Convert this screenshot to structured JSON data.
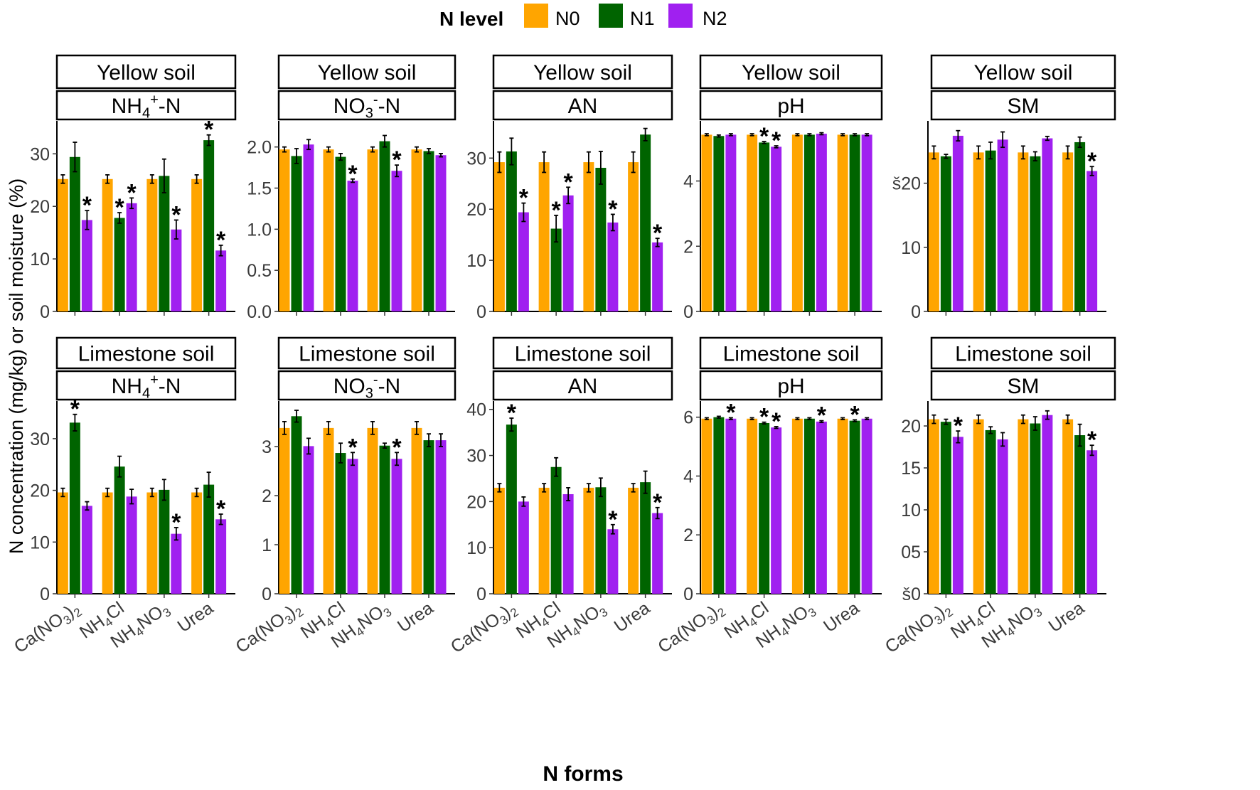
{
  "chart_data": {
    "type": "bar",
    "legend": {
      "title": "N level",
      "entries": [
        {
          "name": "N0",
          "color": "#FFA500"
        },
        {
          "name": "N1",
          "color": "#006400"
        },
        {
          "name": "N2",
          "color": "#A020F0"
        }
      ]
    },
    "xlabel": "N forms",
    "ylabel": "N concentration (mg/kg) or soil moisture (%)",
    "categories": [
      "Ca(NO3)2",
      "NH4Cl",
      "NH4NO3",
      "Urea"
    ],
    "category_labels": [
      {
        "parts": [
          {
            "t": "Ca(NO"
          },
          {
            "t": "3",
            "sub": true
          },
          {
            "t": ")"
          },
          {
            "t": "2",
            "sub": true
          }
        ]
      },
      {
        "parts": [
          {
            "t": "NH"
          },
          {
            "t": "4",
            "sub": true
          },
          {
            "t": "Cl"
          }
        ]
      },
      {
        "parts": [
          {
            "t": "NH"
          },
          {
            "t": "4",
            "sub": true
          },
          {
            "t": "NO"
          },
          {
            "t": "3",
            "sub": true
          }
        ]
      },
      {
        "parts": [
          {
            "t": "Urea"
          }
        ]
      }
    ],
    "significance_marker": "*",
    "panels": [
      {
        "soil": "Yellow soil",
        "variable": "NH4+-N",
        "variable_parts": [
          {
            "t": "NH"
          },
          {
            "t": "4",
            "sub": true
          },
          {
            "t": "+",
            "sup": true
          },
          {
            "t": "-N"
          }
        ],
        "ylim": [
          0,
          36
        ],
        "ticks": [
          0,
          10,
          20,
          30
        ],
        "tick_labels": [
          "0",
          "10",
          "20",
          "30"
        ],
        "series": [
          {
            "name": "N0",
            "values": [
              25.2,
              25.2,
              25.2,
              25.2
            ],
            "err": [
              0.8,
              0.8,
              0.8,
              0.8
            ],
            "sig": [
              false,
              false,
              false,
              false
            ]
          },
          {
            "name": "N1",
            "values": [
              29.4,
              17.8,
              25.8,
              32.6
            ],
            "err": [
              2.8,
              1.0,
              3.2,
              1.0
            ],
            "sig": [
              false,
              true,
              false,
              true
            ]
          },
          {
            "name": "N2",
            "values": [
              17.4,
              20.6,
              15.6,
              11.6
            ],
            "err": [
              1.8,
              1.0,
              1.8,
              1.0
            ],
            "sig": [
              true,
              true,
              true,
              true
            ]
          }
        ]
      },
      {
        "soil": "Yellow soil",
        "variable": "NO3--N",
        "variable_parts": [
          {
            "t": "NO"
          },
          {
            "t": "3",
            "sub": true
          },
          {
            "t": "-",
            "sup": true
          },
          {
            "t": "-N"
          }
        ],
        "ylim": [
          0,
          2.3
        ],
        "ticks": [
          0,
          0.5,
          1.0,
          1.5,
          2.0
        ],
        "tick_labels": [
          "0.0",
          "0.5",
          "1.0",
          "1.5",
          "2.0"
        ],
        "series": [
          {
            "name": "N0",
            "values": [
              1.97,
              1.97,
              1.97,
              1.97
            ],
            "err": [
              0.03,
              0.03,
              0.03,
              0.03
            ],
            "sig": [
              false,
              false,
              false,
              false
            ]
          },
          {
            "name": "N1",
            "values": [
              1.89,
              1.88,
              2.07,
              1.95
            ],
            "err": [
              0.09,
              0.04,
              0.07,
              0.03
            ],
            "sig": [
              false,
              false,
              false,
              false
            ]
          },
          {
            "name": "N2",
            "values": [
              2.03,
              1.59,
              1.71,
              1.9
            ],
            "err": [
              0.06,
              0.02,
              0.07,
              0.02
            ],
            "sig": [
              false,
              true,
              true,
              false
            ]
          }
        ]
      },
      {
        "soil": "Yellow soil",
        "variable": "AN",
        "variable_parts": [
          {
            "t": "AN"
          }
        ],
        "ylim": [
          0,
          37
        ],
        "ticks": [
          0,
          10,
          20,
          30
        ],
        "tick_labels": [
          "0",
          "10",
          "20",
          "30"
        ],
        "series": [
          {
            "name": "N0",
            "values": [
              29.2,
              29.2,
              29.2,
              29.2
            ],
            "err": [
              2.0,
              2.0,
              2.0,
              2.0
            ],
            "sig": [
              false,
              false,
              false,
              false
            ]
          },
          {
            "name": "N1",
            "values": [
              31.3,
              16.2,
              28.1,
              34.6
            ],
            "err": [
              2.6,
              2.6,
              3.2,
              1.2
            ],
            "sig": [
              false,
              true,
              false,
              false
            ]
          },
          {
            "name": "N2",
            "values": [
              19.4,
              22.7,
              17.4,
              13.5
            ],
            "err": [
              1.8,
              1.6,
              1.6,
              0.8
            ],
            "sig": [
              true,
              true,
              true,
              true
            ]
          }
        ]
      },
      {
        "soil": "Yellow soil",
        "variable": "pH",
        "variable_parts": [
          {
            "t": "pH"
          }
        ],
        "ylim": [
          0,
          5.8
        ],
        "ticks": [
          0,
          2,
          4
        ],
        "tick_labels": [
          "0",
          "2",
          "4"
        ],
        "series": [
          {
            "name": "N0",
            "values": [
              5.42,
              5.42,
              5.42,
              5.42
            ],
            "err": [
              0.03,
              0.03,
              0.03,
              0.03
            ],
            "sig": [
              false,
              false,
              false,
              false
            ]
          },
          {
            "name": "N1",
            "values": [
              5.38,
              5.18,
              5.42,
              5.42
            ],
            "err": [
              0.03,
              0.03,
              0.03,
              0.03
            ],
            "sig": [
              false,
              true,
              false,
              false
            ]
          },
          {
            "name": "N2",
            "values": [
              5.42,
              5.05,
              5.45,
              5.42
            ],
            "err": [
              0.03,
              0.03,
              0.03,
              0.03
            ],
            "sig": [
              false,
              true,
              false,
              false
            ]
          }
        ]
      },
      {
        "soil": "Yellow soil",
        "variable": "SM",
        "variable_parts": [
          {
            "t": "SM"
          }
        ],
        "ylim": [
          0,
          29.5
        ],
        "ticks": [
          0,
          10,
          20
        ],
        "tick_labels": [
          "0",
          "10",
          "š20"
        ],
        "series": [
          {
            "name": "N0",
            "values": [
              24.8,
              24.8,
              24.8,
              24.8
            ],
            "err": [
              1.0,
              1.0,
              1.0,
              1.0
            ],
            "sig": [
              false,
              false,
              false,
              false
            ]
          },
          {
            "name": "N1",
            "values": [
              24.2,
              25.1,
              24.2,
              26.4
            ],
            "err": [
              0.3,
              1.3,
              0.7,
              0.8
            ],
            "sig": [
              false,
              false,
              false,
              false
            ]
          },
          {
            "name": "N2",
            "values": [
              27.4,
              26.8,
              27.0,
              21.9
            ],
            "err": [
              0.8,
              1.2,
              0.3,
              0.7
            ],
            "sig": [
              false,
              false,
              false,
              true
            ]
          }
        ]
      },
      {
        "soil": "Limestone soil",
        "variable": "NH4+-N",
        "variable_parts": [
          {
            "t": "NH"
          },
          {
            "t": "4",
            "sub": true
          },
          {
            "t": "+",
            "sup": true
          },
          {
            "t": "-N"
          }
        ],
        "ylim": [
          0,
          37
        ],
        "ticks": [
          0,
          10,
          20,
          30
        ],
        "tick_labels": [
          "0",
          "10",
          "20",
          "30"
        ],
        "series": [
          {
            "name": "N0",
            "values": [
              19.6,
              19.6,
              19.6,
              19.6
            ],
            "err": [
              0.8,
              0.8,
              0.8,
              0.8
            ],
            "sig": [
              false,
              false,
              false,
              false
            ]
          },
          {
            "name": "N1",
            "values": [
              33.1,
              24.6,
              20.1,
              21.1
            ],
            "err": [
              1.6,
              2.0,
              2.0,
              2.4
            ],
            "sig": [
              true,
              false,
              false,
              false
            ]
          },
          {
            "name": "N2",
            "values": [
              17.0,
              18.8,
              11.6,
              14.4
            ],
            "err": [
              0.8,
              1.4,
              1.2,
              1.0
            ],
            "sig": [
              false,
              false,
              true,
              true
            ]
          }
        ]
      },
      {
        "soil": "Limestone soil",
        "variable": "NO3--N",
        "variable_parts": [
          {
            "t": "NO"
          },
          {
            "t": "3",
            "sub": true
          },
          {
            "t": "-",
            "sup": true
          },
          {
            "t": "-N"
          }
        ],
        "ylim": [
          0,
          3.9
        ],
        "ticks": [
          0,
          1,
          2,
          3
        ],
        "tick_labels": [
          "0",
          "1",
          "2",
          "3"
        ],
        "series": [
          {
            "name": "N0",
            "values": [
              3.38,
              3.38,
              3.38,
              3.38
            ],
            "err": [
              0.13,
              0.13,
              0.13,
              0.13
            ],
            "sig": [
              false,
              false,
              false,
              false
            ]
          },
          {
            "name": "N1",
            "values": [
              3.62,
              2.87,
              3.02,
              3.13
            ],
            "err": [
              0.12,
              0.2,
              0.05,
              0.13
            ],
            "sig": [
              false,
              false,
              false,
              false
            ]
          },
          {
            "name": "N2",
            "values": [
              3.01,
              2.75,
              2.75,
              3.13
            ],
            "err": [
              0.16,
              0.13,
              0.13,
              0.13
            ],
            "sig": [
              false,
              true,
              true,
              false
            ]
          }
        ]
      },
      {
        "soil": "Limestone soil",
        "variable": "AN",
        "variable_parts": [
          {
            "t": "AN"
          }
        ],
        "ylim": [
          0,
          41.5
        ],
        "ticks": [
          0,
          10,
          20,
          30,
          40
        ],
        "tick_labels": [
          "0",
          "10",
          "20",
          "30",
          "40"
        ],
        "series": [
          {
            "name": "N0",
            "values": [
              23.0,
              23.0,
              23.0,
              23.0
            ],
            "err": [
              0.9,
              0.9,
              0.9,
              0.9
            ],
            "sig": [
              false,
              false,
              false,
              false
            ]
          },
          {
            "name": "N1",
            "values": [
              36.7,
              27.5,
              23.1,
              24.2
            ],
            "err": [
              1.4,
              2.0,
              2.0,
              2.4
            ],
            "sig": [
              true,
              false,
              false,
              false
            ]
          },
          {
            "name": "N2",
            "values": [
              20.0,
              21.6,
              14.0,
              17.5
            ],
            "err": [
              1.0,
              1.4,
              1.0,
              1.2
            ],
            "sig": [
              false,
              false,
              true,
              true
            ]
          }
        ]
      },
      {
        "soil": "Limestone soil",
        "variable": "pH",
        "variable_parts": [
          {
            "t": "pH"
          }
        ],
        "ylim": [
          0,
          6.5
        ],
        "ticks": [
          0,
          2,
          4,
          6
        ],
        "tick_labels": [
          "0",
          "2",
          "4",
          "6"
        ],
        "series": [
          {
            "name": "N0",
            "values": [
              5.95,
              5.95,
              5.95,
              5.95
            ],
            "err": [
              0.03,
              0.03,
              0.03,
              0.03
            ],
            "sig": [
              false,
              false,
              false,
              false
            ]
          },
          {
            "name": "N1",
            "values": [
              6.0,
              5.8,
              5.95,
              5.88
            ],
            "err": [
              0.03,
              0.03,
              0.03,
              0.03
            ],
            "sig": [
              false,
              true,
              false,
              true
            ]
          },
          {
            "name": "N2",
            "values": [
              5.95,
              5.65,
              5.85,
              5.95
            ],
            "err": [
              0.03,
              0.03,
              0.03,
              0.03
            ],
            "sig": [
              true,
              true,
              true,
              false
            ]
          }
        ]
      },
      {
        "soil": "Limestone soil",
        "variable": "SM",
        "variable_parts": [
          {
            "t": "SM"
          }
        ],
        "ylim": [
          0,
          22.8
        ],
        "ticks": [
          0,
          5,
          10,
          15,
          20
        ],
        "tick_labels": [
          "š0",
          "05",
          "10",
          "15",
          "20"
        ],
        "series": [
          {
            "name": "N0",
            "values": [
              20.8,
              20.8,
              20.8,
              20.8
            ],
            "err": [
              0.5,
              0.5,
              0.5,
              0.5
            ],
            "sig": [
              false,
              false,
              false,
              false
            ]
          },
          {
            "name": "N1",
            "values": [
              20.5,
              19.5,
              20.3,
              18.9
            ],
            "err": [
              0.3,
              0.4,
              0.8,
              1.3
            ],
            "sig": [
              false,
              false,
              false,
              false
            ]
          },
          {
            "name": "N2",
            "values": [
              18.7,
              18.4,
              21.3,
              17.1
            ],
            "err": [
              0.7,
              0.8,
              0.5,
              0.6
            ],
            "sig": [
              true,
              false,
              false,
              true
            ]
          }
        ]
      }
    ]
  }
}
